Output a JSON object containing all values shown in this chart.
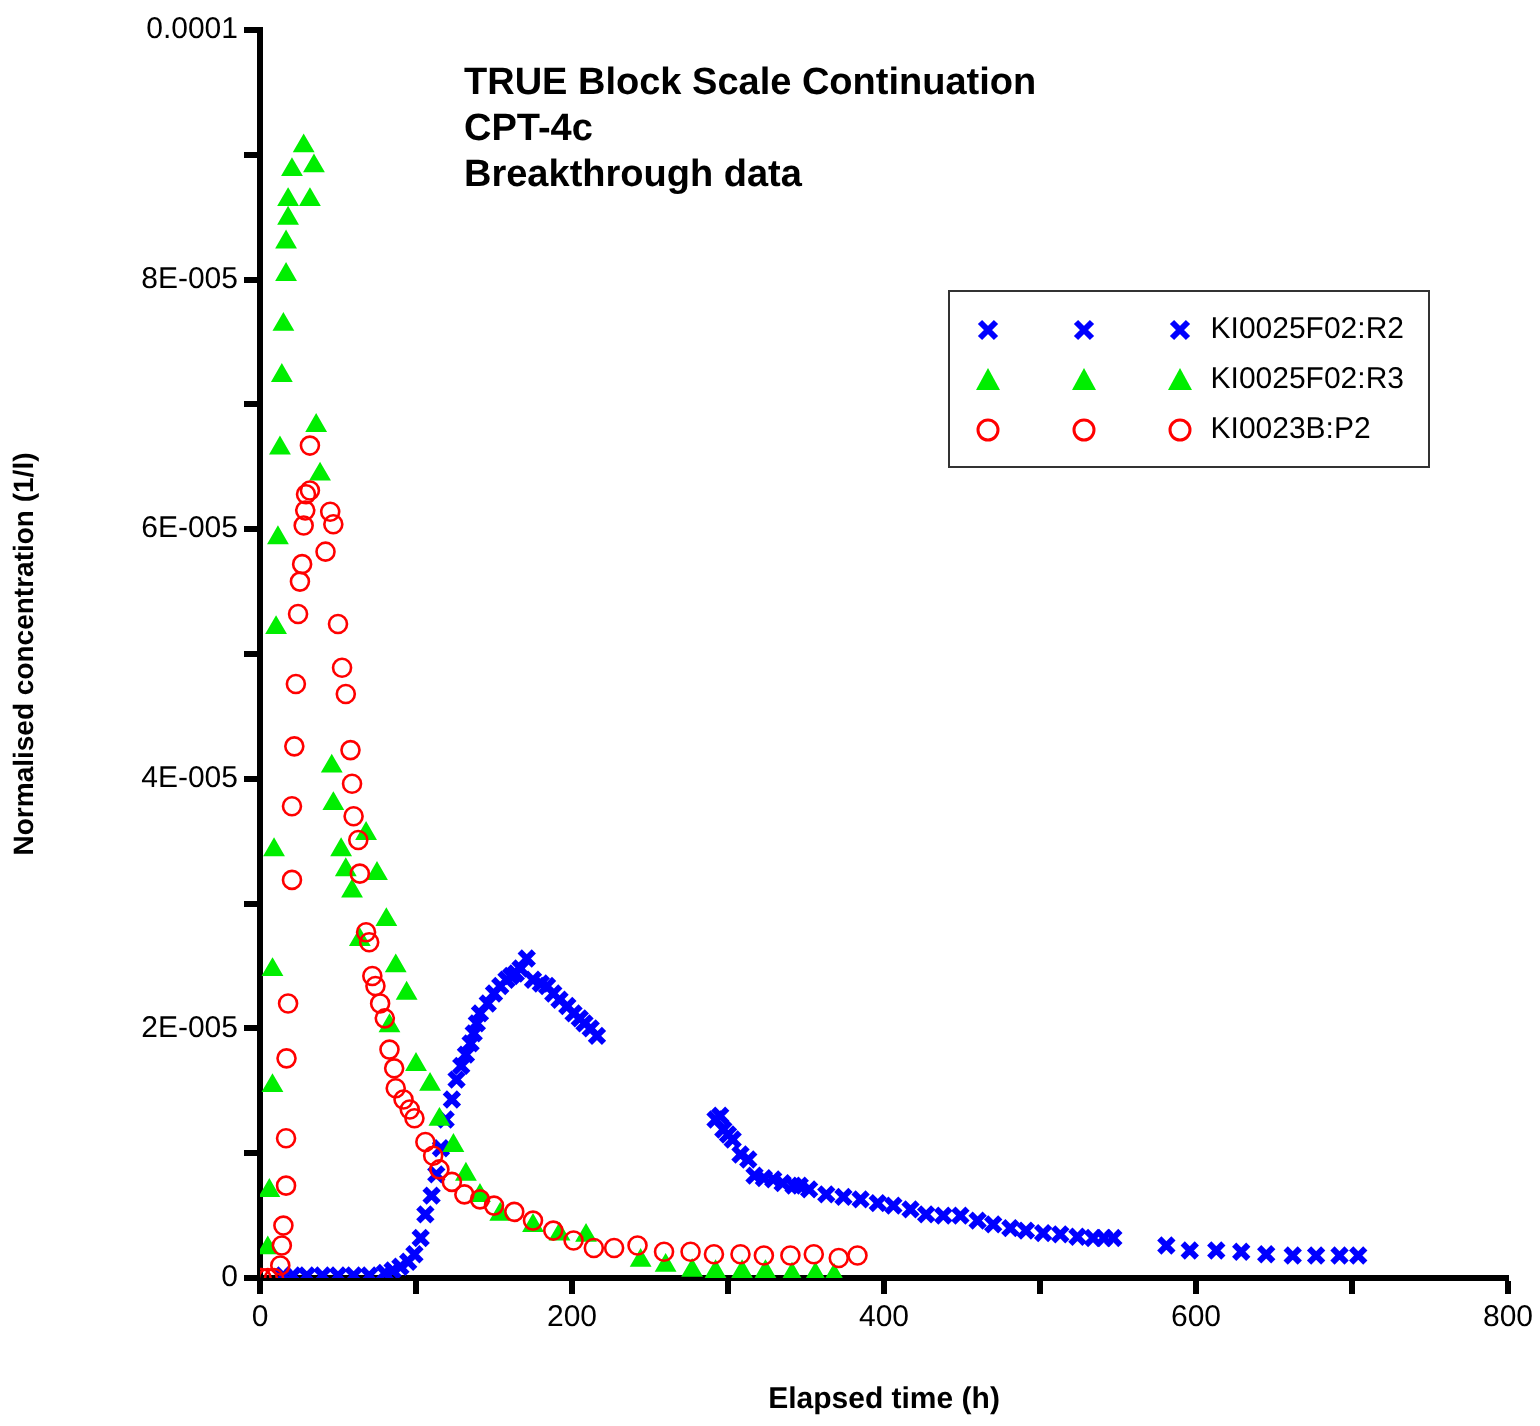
{
  "chart_data": {
    "type": "scatter",
    "title": "TRUE Block Scale Continuation\nCPT-4c\nBreakthrough data",
    "xlabel": "Elapsed time (h)",
    "ylabel": "Normalised concentration (1/l)",
    "xlim": [
      0,
      800
    ],
    "xticks": [
      0,
      {
        "value": 100,
        "label": null
      },
      200,
      {
        "value": 300,
        "label": null
      },
      400,
      {
        "value": 500,
        "label": null
      },
      600,
      {
        "value": 700,
        "label": null
      },
      800
    ],
    "ylim": [
      0,
      0.0001
    ],
    "yticks": [
      0,
      {
        "value": 1e-05,
        "label": null
      },
      {
        "value": 2e-05,
        "label": "2E-005"
      },
      {
        "value": 3e-05,
        "label": null
      },
      {
        "value": 4e-05,
        "label": "4E-005"
      },
      {
        "value": 5e-05,
        "label": null
      },
      {
        "value": 6e-05,
        "label": "6E-005"
      },
      {
        "value": 7e-05,
        "label": null
      },
      {
        "value": 8e-05,
        "label": "8E-005"
      },
      {
        "value": 9e-05,
        "label": null
      },
      0.0001
    ],
    "grid": false,
    "legend": "top right",
    "series": [
      {
        "name": "KI0025F02:R2",
        "color": "#0000ff",
        "marker": "cross",
        "x": [
          15,
          21,
          30,
          40,
          50,
          60,
          70,
          80,
          85,
          90,
          95,
          99,
          103,
          106,
          110,
          113,
          116,
          119,
          123,
          126,
          129,
          132,
          135,
          137,
          139,
          141,
          146,
          150,
          154,
          158,
          161,
          164,
          167,
          171,
          175,
          180,
          184,
          188,
          192,
          197,
          201,
          205,
          208,
          212,
          216,
          292,
          295,
          297,
          300,
          303,
          308,
          313,
          317,
          323,
          329,
          335,
          342,
          346,
          352,
          363,
          374,
          385,
          396,
          406,
          417,
          427,
          438,
          449,
          460,
          470,
          481,
          491,
          502,
          513,
          524,
          534,
          541,
          547,
          581,
          596,
          613,
          629,
          645,
          662,
          677,
          692,
          704
        ],
        "values": [
          2e-07,
          2e-07,
          2e-07,
          2e-07,
          2e-07,
          2e-07,
          2e-07,
          4e-07,
          6e-07,
          9e-07,
          1.3e-06,
          1.9e-06,
          3.2e-06,
          5.1e-06,
          6.6e-06,
          8.3e-06,
          1.04e-05,
          1.27e-05,
          1.43e-05,
          1.59e-05,
          1.7e-05,
          1.79e-05,
          1.88e-05,
          1.96e-05,
          2.04e-05,
          2.12e-05,
          2.2e-05,
          2.28e-05,
          2.34e-05,
          2.39e-05,
          2.42e-05,
          2.44e-05,
          2.48e-05,
          2.56e-05,
          2.39e-05,
          2.36e-05,
          2.34e-05,
          2.28e-05,
          2.23e-05,
          2.18e-05,
          2.12e-05,
          2.08e-05,
          2.04e-05,
          2e-05,
          1.94e-05,
          1.27e-05,
          1.3e-05,
          1.19e-05,
          1.15e-05,
          1.11e-05,
          9.9e-06,
          9.5e-06,
          8.2e-06,
          8e-06,
          7.9e-06,
          7.6e-06,
          7.4e-06,
          7.4e-06,
          7.1e-06,
          6.7e-06,
          6.5e-06,
          6.3e-06,
          6e-06,
          5.8e-06,
          5.5e-06,
          5.1e-06,
          5e-06,
          5e-06,
          4.6e-06,
          4.3e-06,
          4e-06,
          3.8e-06,
          3.6e-06,
          3.5e-06,
          3.3e-06,
          3.2e-06,
          3.2e-06,
          3.2e-06,
          2.6e-06,
          2.2e-06,
          2.2e-06,
          2.1e-06,
          1.9e-06,
          1.8e-06,
          1.8e-06,
          1.8e-06,
          1.8e-06
        ]
      },
      {
        "name": "KI0025F02:R3",
        "color": "#00ee00",
        "marker": "triangle",
        "x": [
          5,
          6,
          8,
          8,
          9,
          10.3,
          11.5,
          12.8,
          14,
          15,
          16.7,
          16.7,
          18,
          18,
          20.5,
          28,
          32,
          34.6,
          36,
          38.5,
          46,
          47,
          52,
          55,
          59,
          64,
          68,
          75,
          81,
          83,
          87,
          94,
          100,
          109,
          115,
          124,
          132,
          141,
          154,
          175,
          192,
          209,
          244,
          260,
          277,
          292,
          309,
          324,
          341,
          356,
          368
        ],
        "values": [
          2.4e-06,
          7e-06,
          1.54e-05,
          2.47e-05,
          3.43e-05,
          5.21e-05,
          5.93e-05,
          6.65e-05,
          7.23e-05,
          7.64e-05,
          8.04e-05,
          8.3e-05,
          8.49e-05,
          8.64e-05,
          8.88e-05,
          9.07e-05,
          8.64e-05,
          8.91e-05,
          6.83e-05,
          6.44e-05,
          4.1e-05,
          3.8e-05,
          3.43e-05,
          3.27e-05,
          3.1e-05,
          2.71e-05,
          3.56e-05,
          3.24e-05,
          2.87e-05,
          2.02e-05,
          2.5e-05,
          2.28e-05,
          1.71e-05,
          1.55e-05,
          1.27e-05,
          1.06e-05,
          8.3e-06,
          6.6e-06,
          5.1e-06,
          4.2e-06,
          3.5e-06,
          3.4e-06,
          1.4e-06,
          1e-06,
          6e-07,
          5e-07,
          5e-07,
          5e-07,
          3e-07,
          3e-07,
          2e-07
        ]
      },
      {
        "name": "KI0023B:P2",
        "color": "#ff0000",
        "marker": "circle",
        "x": [
          1,
          5,
          9,
          13,
          14,
          15,
          16.7,
          16.7,
          17,
          18,
          20.5,
          20.5,
          22,
          23,
          24.4,
          25.6,
          27,
          28,
          29,
          29.5,
          32,
          32,
          42,
          45,
          47,
          50,
          52.6,
          55,
          58,
          59,
          60,
          63,
          64,
          68,
          70,
          72,
          74,
          77,
          80,
          83,
          86,
          87,
          92,
          96,
          99,
          106,
          111,
          115,
          123,
          131,
          141,
          150,
          163,
          175,
          188,
          201,
          214,
          227,
          242,
          259,
          276,
          291,
          308,
          323,
          340,
          355,
          371,
          383
        ],
        "values": [
          0,
          0,
          0,
          1e-06,
          2.6e-06,
          4.2e-06,
          7.4e-06,
          1.12e-05,
          1.76e-05,
          2.2e-05,
          3.19e-05,
          3.78e-05,
          4.26e-05,
          4.76e-05,
          5.32e-05,
          5.58e-05,
          5.72e-05,
          6.03e-05,
          6.15e-05,
          6.28e-05,
          6.31e-05,
          6.67e-05,
          5.82e-05,
          6.14e-05,
          6.04e-05,
          5.24e-05,
          4.89e-05,
          4.68e-05,
          4.23e-05,
          3.96e-05,
          3.7e-05,
          3.51e-05,
          3.24e-05,
          2.77e-05,
          2.69e-05,
          2.42e-05,
          2.34e-05,
          2.2e-05,
          2.08e-05,
          1.83e-05,
          1.68e-05,
          1.52e-05,
          1.43e-05,
          1.35e-05,
          1.28e-05,
          1.09e-05,
          9.8e-06,
          8.7e-06,
          7.7e-06,
          6.7e-06,
          6.3e-06,
          5.8e-06,
          5.3e-06,
          4.6e-06,
          3.8e-06,
          3e-06,
          2.4e-06,
          2.4e-06,
          2.6e-06,
          2.1e-06,
          2.1e-06,
          1.9e-06,
          1.9e-06,
          1.8e-06,
          1.8e-06,
          1.9e-06,
          1.6e-06,
          1.8e-06
        ]
      }
    ]
  }
}
